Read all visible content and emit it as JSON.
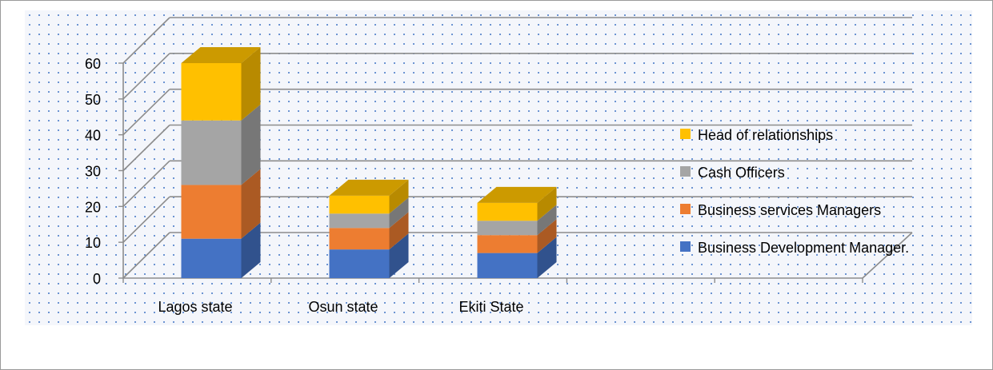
{
  "chart_data": {
    "type": "bar",
    "stacked": true,
    "three_d": true,
    "categories": [
      "Lagos state",
      "Osun state",
      "Ekiti State"
    ],
    "series": [
      {
        "name": "Business Development Manager.",
        "values": [
          11,
          8,
          7
        ],
        "color": "#4472c4"
      },
      {
        "name": "Business services Managers",
        "values": [
          15,
          6,
          5
        ],
        "color": "#ed7d31"
      },
      {
        "name": "Cash Officers",
        "values": [
          18,
          4,
          4
        ],
        "color": "#a5a5a5"
      },
      {
        "name": "Head of relationships",
        "values": [
          16,
          5,
          5
        ],
        "color": "#ffc000"
      }
    ],
    "ylim": [
      0,
      60
    ],
    "yticks": [
      "0",
      "10",
      "20",
      "30",
      "40",
      "50",
      "60"
    ],
    "grid": true,
    "legend": "right",
    "title": "",
    "xlabel": "",
    "ylabel": ""
  }
}
